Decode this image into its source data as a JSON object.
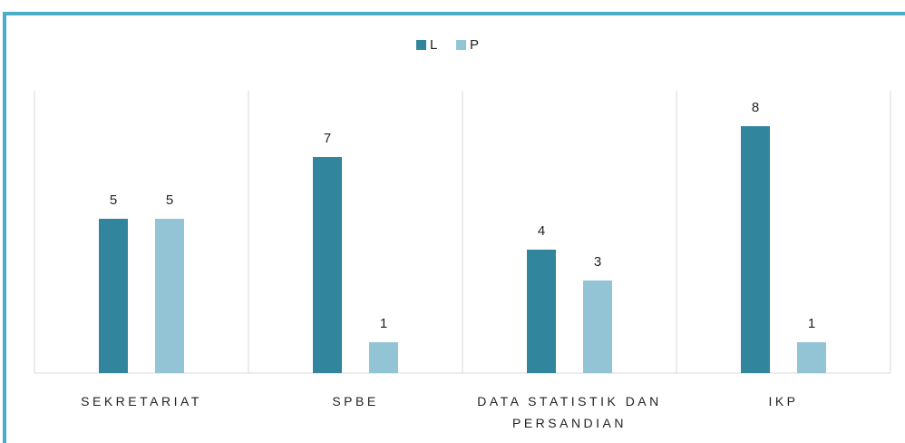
{
  "chart_data": {
    "type": "bar",
    "categories": [
      "SEKRETARIAT",
      "SPBE",
      "DATA STATISTIK DAN PERSANDIAN",
      "IKP"
    ],
    "series": [
      {
        "name": "L",
        "color": "#31859c",
        "values": [
          5,
          7,
          4,
          8
        ]
      },
      {
        "name": "P",
        "color": "#93c4d6",
        "values": [
          5,
          1,
          3,
          1
        ]
      }
    ],
    "ylim": [
      0,
      9
    ],
    "legend": "top"
  }
}
